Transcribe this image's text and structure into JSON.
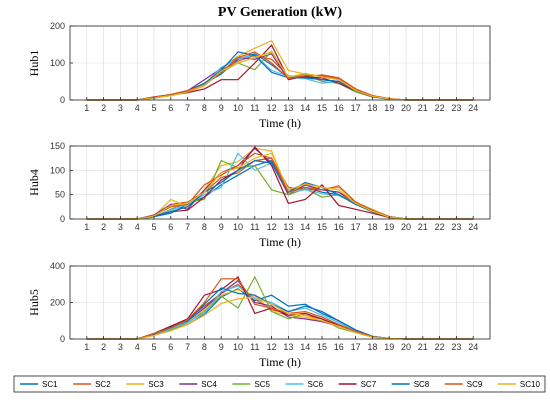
{
  "chart_data": {
    "type": "line",
    "title": "PV Generation (kW)",
    "x": [
      1,
      2,
      3,
      4,
      5,
      6,
      7,
      8,
      9,
      10,
      11,
      12,
      13,
      14,
      15,
      16,
      17,
      18,
      19,
      20,
      21,
      22,
      23,
      24
    ],
    "xlabel": "Time (h)",
    "grid": true,
    "legend_position": "bottom",
    "series_colors": [
      "#0072bd",
      "#d95319",
      "#edb120",
      "#7e2f8e",
      "#77ac30",
      "#4dbeee",
      "#a2142f",
      "#0072bd",
      "#d95319",
      "#edb120"
    ],
    "legend": [
      "SC1",
      "SC2",
      "SC3",
      "SC4",
      "SC5",
      "SC6",
      "SC7",
      "SC8",
      "SC9",
      "SC10"
    ],
    "panels": [
      {
        "ylabel": "Hub1",
        "ylim": [
          0,
          200
        ],
        "yticks": [
          0,
          100,
          200
        ],
        "series": [
          {
            "name": "SC1",
            "values": [
              0,
              0,
              0,
              0,
              8,
              15,
              25,
              45,
              70,
              110,
              125,
              95,
              60,
              60,
              55,
              50,
              25,
              10,
              3,
              0,
              0,
              0,
              0,
              0
            ]
          },
          {
            "name": "SC2",
            "values": [
              0,
              0,
              0,
              0,
              6,
              14,
              22,
              40,
              80,
              105,
              120,
              110,
              65,
              62,
              68,
              60,
              30,
              12,
              4,
              0,
              0,
              0,
              0,
              0
            ]
          },
          {
            "name": "SC3",
            "values": [
              0,
              0,
              0,
              0,
              5,
              12,
              20,
              38,
              85,
              118,
              140,
              160,
              80,
              70,
              65,
              55,
              28,
              10,
              3,
              0,
              0,
              0,
              0,
              0
            ]
          },
          {
            "name": "SC4",
            "values": [
              0,
              0,
              0,
              0,
              7,
              14,
              25,
              55,
              85,
              115,
              110,
              125,
              55,
              65,
              55,
              50,
              25,
              10,
              2,
              0,
              0,
              0,
              0,
              0
            ]
          },
          {
            "name": "SC5",
            "values": [
              0,
              0,
              0,
              0,
              6,
              12,
              22,
              45,
              75,
              100,
              82,
              132,
              60,
              70,
              50,
              45,
              22,
              8,
              2,
              0,
              0,
              0,
              0,
              0
            ]
          },
          {
            "name": "SC6",
            "values": [
              0,
              0,
              0,
              0,
              5,
              13,
              24,
              42,
              88,
              112,
              122,
              80,
              64,
              58,
              45,
              50,
              24,
              9,
              2,
              0,
              0,
              0,
              0,
              0
            ]
          },
          {
            "name": "SC7",
            "values": [
              0,
              0,
              0,
              0,
              8,
              14,
              20,
              30,
              55,
              55,
              100,
              148,
              58,
              62,
              60,
              45,
              25,
              9,
              3,
              0,
              0,
              0,
              0,
              0
            ]
          },
          {
            "name": "SC8",
            "values": [
              0,
              0,
              0,
              0,
              6,
              13,
              24,
              45,
              80,
              130,
              120,
              75,
              60,
              60,
              55,
              50,
              26,
              10,
              3,
              0,
              0,
              0,
              0,
              0
            ]
          },
          {
            "name": "SC9",
            "values": [
              0,
              0,
              0,
              0,
              7,
              15,
              26,
              40,
              75,
              115,
              130,
              100,
              58,
              66,
              66,
              58,
              30,
              11,
              3,
              0,
              0,
              0,
              0,
              0
            ]
          },
          {
            "name": "SC10",
            "values": [
              0,
              0,
              0,
              0,
              6,
              12,
              22,
              40,
              78,
              100,
              115,
              130,
              62,
              72,
              62,
              55,
              26,
              10,
              3,
              0,
              0,
              0,
              0,
              0
            ]
          }
        ]
      },
      {
        "ylabel": "Hub4",
        "ylim": [
          0,
          150
        ],
        "yticks": [
          0,
          50,
          100,
          150
        ],
        "series": [
          {
            "name": "SC1",
            "values": [
              0,
              0,
              0,
              0,
              5,
              12,
              30,
              45,
              70,
              90,
              110,
              120,
              60,
              65,
              55,
              50,
              30,
              18,
              5,
              0,
              0,
              0,
              0,
              0
            ]
          },
          {
            "name": "SC2",
            "values": [
              0,
              0,
              0,
              0,
              8,
              30,
              35,
              55,
              85,
              95,
              120,
              125,
              65,
              60,
              60,
              55,
              30,
              15,
              5,
              0,
              0,
              0,
              0,
              0
            ]
          },
          {
            "name": "SC3",
            "values": [
              0,
              0,
              0,
              0,
              6,
              40,
              25,
              60,
              110,
              118,
              145,
              140,
              55,
              70,
              60,
              65,
              35,
              20,
              5,
              0,
              0,
              0,
              0,
              0
            ]
          },
          {
            "name": "SC4",
            "values": [
              0,
              0,
              0,
              0,
              8,
              30,
              20,
              60,
              95,
              110,
              145,
              115,
              50,
              70,
              60,
              55,
              35,
              15,
              5,
              0,
              0,
              0,
              0,
              0
            ]
          },
          {
            "name": "SC5",
            "values": [
              0,
              0,
              0,
              0,
              4,
              20,
              35,
              40,
              120,
              105,
              110,
              60,
              50,
              62,
              45,
              50,
              30,
              15,
              3,
              0,
              0,
              0,
              0,
              0
            ]
          },
          {
            "name": "SC6",
            "values": [
              0,
              0,
              0,
              0,
              5,
              18,
              30,
              50,
              65,
              135,
              100,
              115,
              55,
              60,
              52,
              48,
              32,
              18,
              5,
              0,
              0,
              0,
              0,
              0
            ]
          },
          {
            "name": "SC7",
            "values": [
              0,
              0,
              0,
              0,
              6,
              15,
              18,
              45,
              80,
              100,
              148,
              110,
              32,
              40,
              70,
              28,
              20,
              12,
              3,
              0,
              0,
              0,
              0,
              0
            ]
          },
          {
            "name": "SC8",
            "values": [
              0,
              0,
              0,
              0,
              5,
              15,
              25,
              55,
              75,
              100,
              120,
              115,
              55,
              75,
              65,
              50,
              30,
              15,
              4,
              0,
              0,
              0,
              0,
              0
            ]
          },
          {
            "name": "SC9",
            "values": [
              0,
              0,
              0,
              0,
              7,
              25,
              30,
              70,
              90,
              110,
              135,
              125,
              55,
              65,
              60,
              68,
              35,
              18,
              5,
              0,
              0,
              0,
              0,
              0
            ]
          },
          {
            "name": "SC10",
            "values": [
              0,
              0,
              0,
              0,
              6,
              28,
              32,
              55,
              95,
              105,
              125,
              135,
              60,
              72,
              65,
              60,
              32,
              16,
              4,
              0,
              0,
              0,
              0,
              0
            ]
          }
        ]
      },
      {
        "ylabel": "Hub5",
        "ylim": [
          0,
          400
        ],
        "yticks": [
          0,
          200,
          400
        ],
        "series": [
          {
            "name": "SC1",
            "values": [
              0,
              0,
              0,
              0,
              25,
              50,
              80,
              135,
              230,
              275,
              210,
              240,
              180,
              190,
              140,
              100,
              50,
              15,
              3,
              0,
              0,
              0,
              0,
              0
            ]
          },
          {
            "name": "SC2",
            "values": [
              0,
              0,
              0,
              0,
              30,
              70,
              110,
              180,
              250,
              300,
              220,
              160,
              140,
              130,
              110,
              70,
              40,
              12,
              3,
              0,
              0,
              0,
              0,
              0
            ]
          },
          {
            "name": "SC3",
            "values": [
              0,
              0,
              0,
              0,
              20,
              55,
              90,
              160,
              240,
              270,
              240,
              150,
              130,
              120,
              100,
              75,
              35,
              10,
              2,
              0,
              0,
              0,
              0,
              0
            ]
          },
          {
            "name": "SC4",
            "values": [
              0,
              0,
              0,
              0,
              28,
              60,
              100,
              170,
              250,
              320,
              200,
              180,
              120,
              110,
              95,
              70,
              38,
              12,
              3,
              0,
              0,
              0,
              0,
              0
            ]
          },
          {
            "name": "SC5",
            "values": [
              0,
              0,
              0,
              0,
              22,
              50,
              90,
              150,
              235,
              170,
              340,
              150,
              110,
              140,
              110,
              60,
              35,
              10,
              2,
              0,
              0,
              0,
              0,
              0
            ]
          },
          {
            "name": "SC6",
            "values": [
              0,
              0,
              0,
              0,
              25,
              55,
              95,
              140,
              260,
              290,
              220,
              200,
              150,
              170,
              130,
              90,
              45,
              14,
              3,
              0,
              0,
              0,
              0,
              0
            ]
          },
          {
            "name": "SC7",
            "values": [
              0,
              0,
              0,
              0,
              30,
              70,
              110,
              240,
              270,
              340,
              140,
              170,
              130,
              140,
              110,
              75,
              40,
              12,
              3,
              0,
              0,
              0,
              0,
              0
            ]
          },
          {
            "name": "SC8",
            "values": [
              0,
              0,
              0,
              0,
              26,
              65,
              100,
              190,
              280,
              250,
              240,
              190,
              150,
              180,
              150,
              100,
              50,
              15,
              3,
              0,
              0,
              0,
              0,
              0
            ]
          },
          {
            "name": "SC9",
            "values": [
              0,
              0,
              0,
              0,
              30,
              60,
              105,
              200,
              330,
              330,
              190,
              170,
              140,
              150,
              120,
              80,
              42,
              13,
              3,
              0,
              0,
              0,
              0,
              0
            ]
          },
          {
            "name": "SC10",
            "values": [
              0,
              0,
              0,
              0,
              20,
              45,
              80,
              130,
              195,
              220,
              230,
              190,
              140,
              130,
              100,
              70,
              35,
              10,
              2,
              0,
              0,
              0,
              0,
              0
            ]
          }
        ]
      }
    ]
  }
}
